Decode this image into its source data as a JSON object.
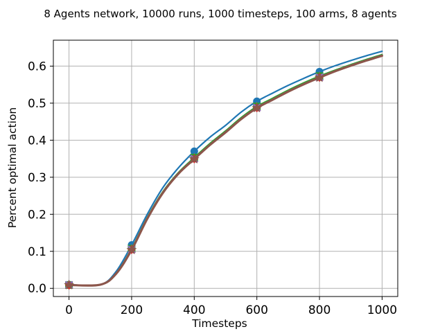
{
  "chart_data": {
    "type": "line",
    "title": "8 Agents network, 10000 runs, 1000 timesteps, 100 arms, 8 agents",
    "xlabel": "Timesteps",
    "ylabel": "Percent optimal action",
    "xlim": [
      -50,
      1050
    ],
    "ylim": [
      -0.022,
      0.67
    ],
    "xticks": [
      0,
      200,
      400,
      600,
      800,
      1000
    ],
    "yticks": [
      0.0,
      0.1,
      0.2,
      0.3,
      0.4,
      0.5,
      0.6
    ],
    "xtick_labels": [
      "0",
      "200",
      "400",
      "600",
      "800",
      "1000"
    ],
    "ytick_labels": [
      "0.0",
      "0.1",
      "0.2",
      "0.3",
      "0.4",
      "0.5",
      "0.6"
    ],
    "grid": true,
    "x": [
      0,
      100,
      150,
      200,
      250,
      300,
      350,
      400,
      450,
      500,
      550,
      600,
      650,
      700,
      750,
      800,
      850,
      900,
      950,
      1000
    ],
    "marker_x": [
      0,
      200,
      400,
      600,
      800
    ],
    "series": [
      {
        "color": "#1f77b4",
        "marker": "circle",
        "linewidth": 2.2,
        "values": [
          0.01,
          0.01,
          0.045,
          0.117,
          0.2,
          0.272,
          0.326,
          0.37,
          0.408,
          0.44,
          0.476,
          0.505,
          0.527,
          0.548,
          0.567,
          0.585,
          0.601,
          0.615,
          0.628,
          0.64
        ]
      },
      {
        "color": "#ff7f0e",
        "marker": "triangle",
        "linewidth": 2.2,
        "values": [
          0.009,
          0.01,
          0.04,
          0.106,
          0.19,
          0.26,
          0.312,
          0.352,
          0.39,
          0.424,
          0.46,
          0.49,
          0.512,
          0.534,
          0.554,
          0.572,
          0.588,
          0.603,
          0.617,
          0.63
        ]
      },
      {
        "color": "#2ca02c",
        "marker": "square",
        "linewidth": 2.2,
        "values": [
          0.009,
          0.01,
          0.04,
          0.107,
          0.191,
          0.261,
          0.313,
          0.353,
          0.391,
          0.425,
          0.461,
          0.491,
          0.513,
          0.535,
          0.555,
          0.573,
          0.589,
          0.604,
          0.618,
          0.631
        ]
      },
      {
        "color": "#d62728",
        "marker": "diamond",
        "linewidth": 2.2,
        "values": [
          0.009,
          0.01,
          0.039,
          0.105,
          0.189,
          0.259,
          0.311,
          0.35,
          0.388,
          0.422,
          0.458,
          0.488,
          0.51,
          0.532,
          0.552,
          0.57,
          0.587,
          0.602,
          0.616,
          0.629
        ]
      },
      {
        "color": "#9467bd",
        "marker": "x",
        "linewidth": 2.2,
        "values": [
          0.009,
          0.01,
          0.039,
          0.105,
          0.189,
          0.259,
          0.311,
          0.35,
          0.388,
          0.422,
          0.458,
          0.488,
          0.51,
          0.532,
          0.552,
          0.57,
          0.587,
          0.602,
          0.616,
          0.629
        ]
      },
      {
        "color": "#8c564b",
        "marker": "star",
        "linewidth": 3.2,
        "values": [
          0.009,
          0.01,
          0.039,
          0.104,
          0.188,
          0.258,
          0.31,
          0.349,
          0.387,
          0.421,
          0.457,
          0.487,
          0.509,
          0.531,
          0.551,
          0.569,
          0.586,
          0.601,
          0.615,
          0.628
        ]
      }
    ]
  }
}
